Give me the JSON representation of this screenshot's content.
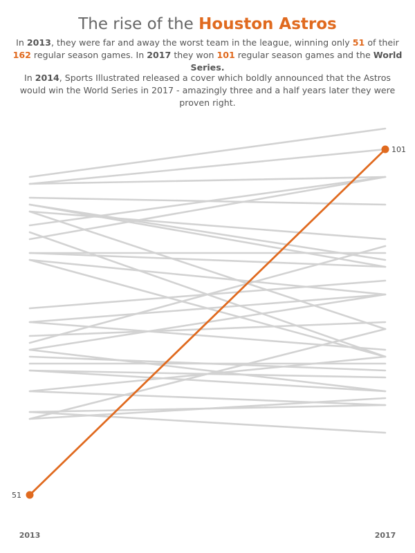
{
  "header": {
    "title_prefix": "The rise of the",
    "title_team": "Houston Astros"
  },
  "intro": {
    "p1_s1": "In",
    "p1_year1": "2013",
    "p1_s2": ", they were far and away the worst team in the league, winning only",
    "p1_wins1": "51",
    "p1_s3": "of their",
    "p1_games": "162",
    "p1_s4": "regular season games. In",
    "p1_year2": "2017",
    "p1_s5": "they won",
    "p1_wins2": "101",
    "p1_s6": "regular season games and the",
    "p1_ws": "World Series.",
    "p2_s1": "In",
    "p2_year": "2014",
    "p2_s2": ", Sports Illustrated released a cover which boldly announced that the Astros would win the World Series in 2017 - amazingly three and a half years later they were proven right."
  },
  "colors": {
    "highlight": "#e06a1f",
    "other_teams": "#d2d2d2",
    "text": "#555555"
  },
  "chart_data": {
    "type": "line",
    "title": "The rise of the Houston Astros",
    "x": [
      "2013",
      "2017"
    ],
    "ylim": [
      51,
      104
    ],
    "grid": false,
    "highlight": {
      "name": "Houston Astros",
      "values": [
        51,
        101
      ],
      "labels": [
        "51",
        "101"
      ]
    },
    "other_series": [
      [
        97,
        104
      ],
      [
        96,
        97
      ],
      [
        96,
        101
      ],
      [
        94,
        93
      ],
      [
        93,
        84
      ],
      [
        93,
        85
      ],
      [
        92,
        75
      ],
      [
        92,
        88
      ],
      [
        90,
        97
      ],
      [
        89,
        71
      ],
      [
        88,
        97
      ],
      [
        86,
        86
      ],
      [
        86,
        84
      ],
      [
        85,
        71
      ],
      [
        85,
        80
      ],
      [
        78,
        82
      ],
      [
        76,
        72
      ],
      [
        76,
        80
      ],
      [
        74,
        76
      ],
      [
        73,
        87
      ],
      [
        72,
        66
      ],
      [
        72,
        80
      ],
      [
        71,
        69
      ],
      [
        70,
        70
      ],
      [
        69,
        66
      ],
      [
        69,
        68
      ],
      [
        66,
        71
      ],
      [
        66,
        64
      ],
      [
        63,
        64
      ],
      [
        63,
        60
      ],
      [
        62,
        65
      ],
      [
        62,
        75
      ]
    ]
  }
}
